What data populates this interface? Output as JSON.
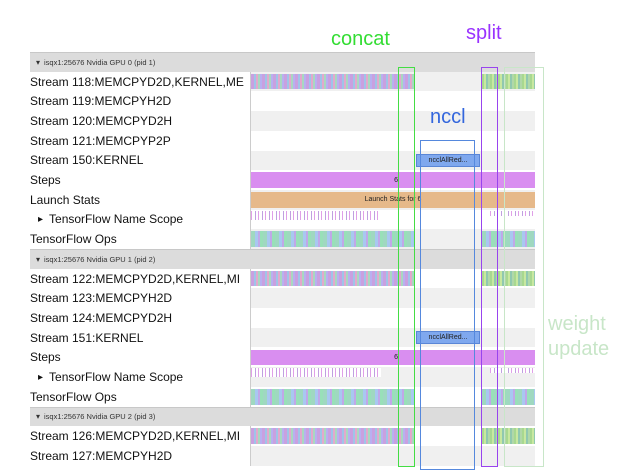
{
  "annotations": {
    "concat": "concat",
    "split": "split",
    "nccl": "nccl",
    "weight_update": "weight update"
  },
  "groups": [
    {
      "header": "isqx1:25676 Nvidia GPU 0 (pid 1)",
      "rows": [
        {
          "label": "Stream 118:MEMCPYD2D,KERNEL,ME"
        },
        {
          "label": "Stream 119:MEMCPYH2D"
        },
        {
          "label": "Stream 120:MEMCPYD2H"
        },
        {
          "label": "Stream 121:MEMCPYP2P"
        },
        {
          "label": "Stream 150:KERNEL",
          "event": "ncclAllRed..."
        },
        {
          "label": "Steps",
          "event": "6"
        },
        {
          "label": "Launch Stats",
          "event": "Launch Stats for 6"
        },
        {
          "label": "TensorFlow Name Scope"
        },
        {
          "label": "TensorFlow Ops"
        }
      ]
    },
    {
      "header": "isqx1:25676 Nvidia GPU 1 (pid 2)",
      "rows": [
        {
          "label": "Stream 122:MEMCPYD2D,KERNEL,MI"
        },
        {
          "label": "Stream 123:MEMCPYH2D"
        },
        {
          "label": "Stream 124:MEMCPYD2H"
        },
        {
          "label": "Stream 151:KERNEL",
          "event": "ncclAllRed..."
        },
        {
          "label": "Steps",
          "event": "6"
        },
        {
          "label": "TensorFlow Name Scope"
        },
        {
          "label": "TensorFlow Ops"
        }
      ]
    },
    {
      "header": "isqx1:25676 Nvidia GPU 2 (pid 3)",
      "rows": [
        {
          "label": "Stream 126:MEMCPYD2D,KERNEL,MI"
        },
        {
          "label": "Stream 127:MEMCPYH2D"
        }
      ]
    }
  ]
}
